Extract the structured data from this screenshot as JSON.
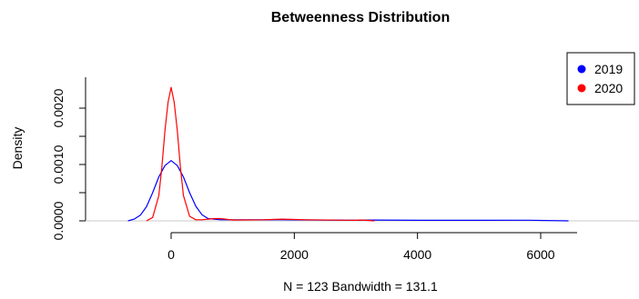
{
  "chart_data": {
    "type": "line",
    "title": "Betweenness Distribution",
    "xlabel": "N = 123   Bandwidth = 131.1",
    "ylabel": "Density",
    "xlim": [
      -1200,
      6800
    ],
    "ylim": [
      0,
      0.0024
    ],
    "x_ticks": [
      0,
      2000,
      4000,
      6000
    ],
    "x_tick_labels": [
      "0",
      "2000",
      "4000",
      "6000"
    ],
    "y_ticks": [
      0,
      0.0005,
      0.001,
      0.0015,
      0.002
    ],
    "y_tick_labels": [
      "0.0000",
      "",
      "0.0010",
      "",
      "0.0020"
    ],
    "legend": {
      "position": "top-right",
      "entries": [
        "2019",
        "2020"
      ]
    },
    "series": [
      {
        "name": "2019",
        "color": "#0000ff",
        "points": [
          [
            -700,
            0.0
          ],
          [
            -600,
            3e-05
          ],
          [
            -500,
            0.0001
          ],
          [
            -400,
            0.00025
          ],
          [
            -300,
            0.0005
          ],
          [
            -200,
            0.00078
          ],
          [
            -100,
            0.00098
          ],
          [
            0,
            0.00107
          ],
          [
            100,
            0.00098
          ],
          [
            200,
            0.00078
          ],
          [
            300,
            0.0005
          ],
          [
            400,
            0.00026
          ],
          [
            500,
            0.00011
          ],
          [
            600,
            4e-05
          ],
          [
            800,
            2e-05
          ],
          [
            1200,
            2e-05
          ],
          [
            1800,
            2e-05
          ],
          [
            2500,
            1.5e-05
          ],
          [
            3000,
            1e-05
          ],
          [
            3300,
            1.5e-05
          ],
          [
            4000,
            1e-05
          ],
          [
            5000,
            1e-05
          ],
          [
            5800,
            1.2e-05
          ],
          [
            6450,
            0.0
          ]
        ]
      },
      {
        "name": "2020",
        "color": "#ff0000",
        "points": [
          [
            -400,
            0.0
          ],
          [
            -300,
            6e-05
          ],
          [
            -200,
            0.00045
          ],
          [
            -150,
            0.00095
          ],
          [
            -100,
            0.0016
          ],
          [
            -50,
            0.0021
          ],
          [
            0,
            0.00237
          ],
          [
            50,
            0.0021
          ],
          [
            100,
            0.0016
          ],
          [
            150,
            0.00095
          ],
          [
            200,
            0.00045
          ],
          [
            300,
            8e-05
          ],
          [
            400,
            2e-05
          ],
          [
            500,
            2e-05
          ],
          [
            700,
            4e-05
          ],
          [
            800,
            4e-05
          ],
          [
            1000,
            1.5e-05
          ],
          [
            1500,
            2e-05
          ],
          [
            1800,
            3e-05
          ],
          [
            2200,
            2e-05
          ],
          [
            3000,
            1e-05
          ],
          [
            3100,
            1.5e-05
          ],
          [
            3300,
            0.0
          ]
        ]
      }
    ]
  }
}
